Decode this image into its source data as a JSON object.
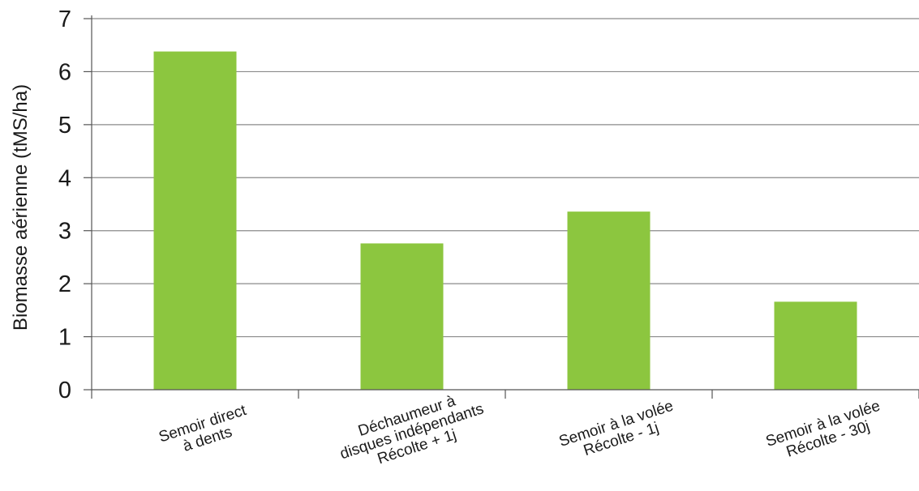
{
  "chart_data": {
    "type": "bar",
    "categories": [
      [
        "Semoir direct",
        "à dents"
      ],
      [
        "Déchaumeur à",
        "disques indépendants",
        "Récolte + 1j"
      ],
      [
        "Semoir à la volée",
        "Récolte - 1j"
      ],
      [
        "Semoir à la volée",
        "Récolte - 30j"
      ]
    ],
    "values": [
      6.38,
      2.76,
      3.36,
      1.66
    ],
    "ylabel": "Biomasse aérienne (tMS/ha)",
    "xlabel": "",
    "ylim": [
      0,
      7
    ],
    "yticks": [
      0,
      1,
      2,
      3,
      4,
      5,
      6,
      7
    ],
    "grid": true,
    "bar_color": "#8cc63f",
    "grid_color": "#8a8a8a"
  }
}
